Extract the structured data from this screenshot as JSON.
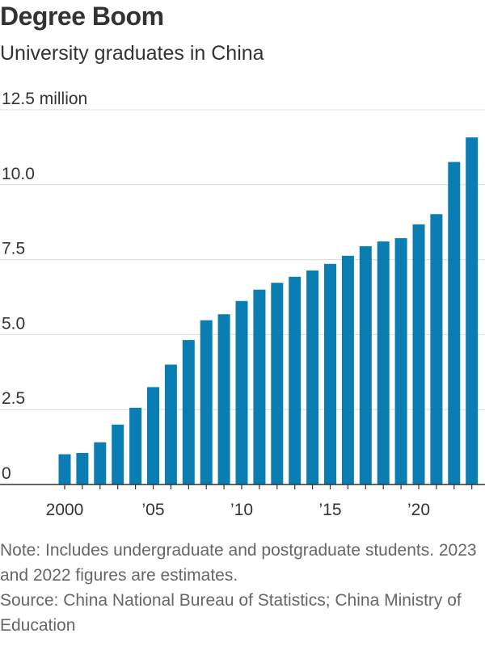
{
  "title": "Degree Boom",
  "subtitle": "University graduates in China",
  "note": "Note: Includes undergraduate and postgraduate students. 2023 and 2022 figures are estimates.",
  "source": "Source: China National Bureau of Statistics; China Ministry of Education",
  "colors": {
    "bar": "#0a7db3",
    "grid": "#d9d9d9",
    "axis": "#333333",
    "text": "#333333"
  },
  "chart_data": {
    "type": "bar",
    "title": "Degree Boom",
    "subtitle": "University graduates in China",
    "categories": [
      "2000",
      "2001",
      "2002",
      "2003",
      "2004",
      "2005",
      "2006",
      "2007",
      "2008",
      "2009",
      "2010",
      "2011",
      "2012",
      "2013",
      "2014",
      "2015",
      "2016",
      "2017",
      "2018",
      "2019",
      "2020",
      "2021",
      "2022",
      "2023"
    ],
    "values": [
      1.01,
      1.05,
      1.41,
      2.0,
      2.56,
      3.25,
      4.0,
      4.82,
      5.48,
      5.68,
      6.12,
      6.5,
      6.73,
      6.93,
      7.14,
      7.36,
      7.63,
      7.95,
      8.11,
      8.22,
      8.68,
      9.02,
      10.76,
      11.58
    ],
    "xlabel": "",
    "ylabel": "",
    "ylim": [
      0,
      12.5
    ],
    "yticks": [
      0,
      2.5,
      5.0,
      7.5,
      10.0,
      12.5
    ],
    "ytick_labels": [
      "0",
      "2.5",
      "5.0",
      "7.5",
      "10.0",
      "12.5 million"
    ],
    "xtick_labels": [
      {
        "category": "2000",
        "label": "2000"
      },
      {
        "category": "2005",
        "label": "’05"
      },
      {
        "category": "2010",
        "label": "’10"
      },
      {
        "category": "2015",
        "label": "’15"
      },
      {
        "category": "2020",
        "label": "’20"
      }
    ],
    "grid": true,
    "legend": "none"
  }
}
